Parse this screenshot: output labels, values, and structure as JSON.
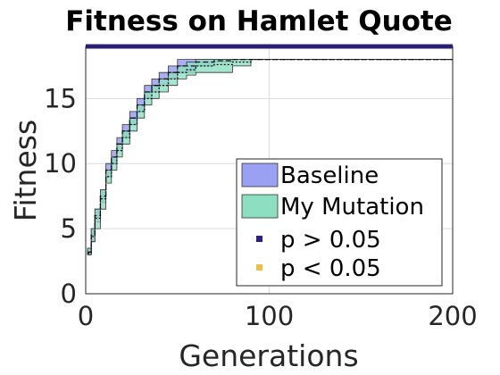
{
  "chart_data": {
    "type": "area",
    "title": "Fitness on Hamlet Quote",
    "xlabel": "Generations",
    "ylabel": "Fitness",
    "xlim": [
      0,
      200
    ],
    "ylim": [
      0,
      19
    ],
    "xticks": [
      0,
      100,
      200
    ],
    "yticks": [
      0,
      5,
      10,
      15
    ],
    "grid": true,
    "legend_position": "lower-right",
    "series": [
      {
        "name": "Baseline",
        "color": "#9aa0f2",
        "x": [
          1,
          3,
          5,
          8,
          11,
          14,
          17,
          20,
          24,
          28,
          32,
          36,
          40,
          45,
          50,
          55,
          60,
          70,
          80,
          90,
          100,
          150,
          200
        ],
        "lower": [
          3,
          4,
          5.5,
          7,
          9,
          10,
          11,
          12,
          13,
          14,
          15,
          15.5,
          16,
          16.5,
          17,
          17,
          17.5,
          17.8,
          18,
          18,
          18,
          18,
          18
        ],
        "upper": [
          3.5,
          5,
          6.5,
          8,
          10,
          11,
          12,
          13,
          14,
          15,
          16,
          16.5,
          17,
          17.5,
          18,
          18,
          18,
          18,
          18,
          18,
          18,
          18,
          18
        ],
        "mean": [
          3.2,
          4.5,
          6,
          7.5,
          9.5,
          10.5,
          11.5,
          12.5,
          13.5,
          14.5,
          15.5,
          16,
          16.5,
          17,
          17.5,
          17.5,
          17.8,
          17.9,
          18,
          18,
          18,
          18,
          18
        ]
      },
      {
        "name": "My Mutation",
        "color": "#8cdfc0",
        "x": [
          1,
          3,
          5,
          8,
          11,
          14,
          17,
          20,
          24,
          28,
          32,
          36,
          40,
          45,
          50,
          55,
          60,
          70,
          80,
          90,
          100,
          150,
          200
        ],
        "lower": [
          3,
          4,
          5,
          6.5,
          8.5,
          9.5,
          10.5,
          11.5,
          12.5,
          13.5,
          14.5,
          15,
          15.5,
          16,
          16.5,
          16.8,
          17,
          17,
          17.5,
          18,
          18,
          18,
          18
        ],
        "upper": [
          3.5,
          5,
          6.5,
          8,
          9.5,
          10.5,
          11.5,
          12.5,
          13.5,
          14.5,
          15.5,
          16,
          16.5,
          17,
          17.5,
          17.8,
          18,
          18,
          18,
          18,
          18,
          18,
          18
        ],
        "mean": [
          3.1,
          4.4,
          5.8,
          7.3,
          9,
          10,
          11,
          12,
          13,
          14,
          15,
          15.5,
          16,
          16.5,
          17,
          17.2,
          17.5,
          17.6,
          17.8,
          18,
          18,
          18,
          18
        ]
      }
    ],
    "significance": {
      "bar_y": 19,
      "segments": [
        {
          "x_start": 0,
          "x_end": 200,
          "category": "p > 0.05"
        }
      ]
    },
    "legend": [
      {
        "label": "Baseline",
        "swatch": "patch",
        "color": "#9aa0f2"
      },
      {
        "label": "My Mutation",
        "swatch": "patch",
        "color": "#8cdfc0"
      },
      {
        "label": "p > 0.05",
        "swatch": "dot",
        "color": "#2b1f8f"
      },
      {
        "label": "p < 0.05",
        "swatch": "dot",
        "color": "#f2c12e"
      }
    ]
  }
}
